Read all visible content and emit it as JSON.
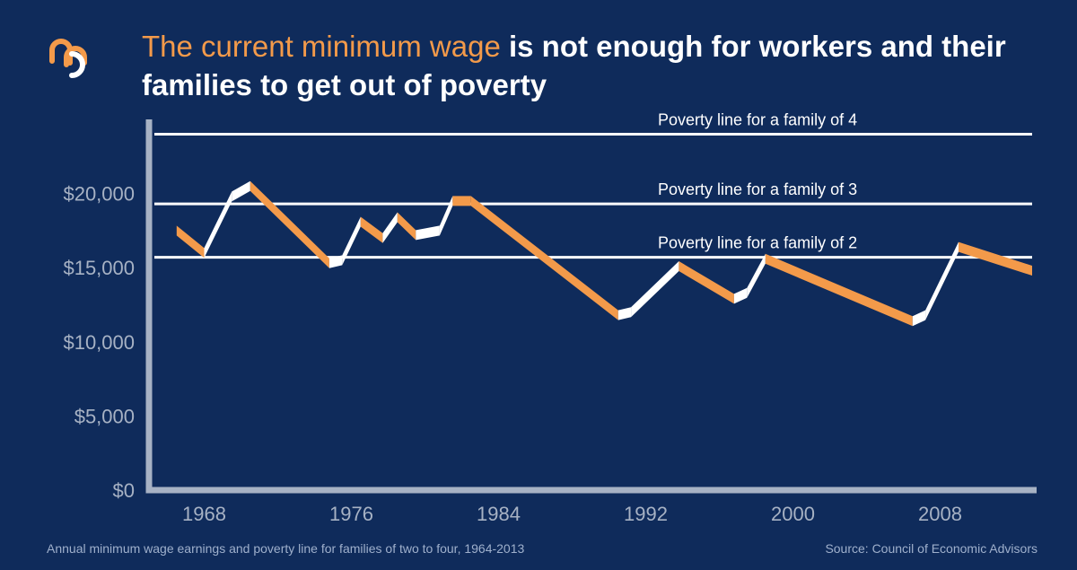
{
  "header": {
    "title_highlight": "The current minimum wage",
    "title_rest": " is not enough for workers and their families to get out of poverty"
  },
  "footer": {
    "caption": "Annual minimum wage earnings and poverty line for families of two to four, 1964-2013",
    "source": "Source: Council of Economic Advisors"
  },
  "colors": {
    "background": "#0f2b5b",
    "accent": "#f39a4a",
    "ribbon_up": "#ffffff",
    "line": "#ffffff",
    "axis": "#a7b2c4",
    "tick_label": "#a7b2c4"
  },
  "logo_icon": "brand-logo-icon",
  "chart_data": {
    "type": "line",
    "xlim": [
      1965,
      2013
    ],
    "ylim": [
      0,
      25000
    ],
    "yticks": [
      {
        "value": 0,
        "label": "$0"
      },
      {
        "value": 5000,
        "label": "$5,000"
      },
      {
        "value": 10000,
        "label": "$10,000"
      },
      {
        "value": 15000,
        "label": "$15,000"
      },
      {
        "value": 20000,
        "label": "$20,000"
      }
    ],
    "xticks": [
      {
        "value": 1968,
        "label": "1968"
      },
      {
        "value": 1976,
        "label": "1976"
      },
      {
        "value": 1984,
        "label": "1984"
      },
      {
        "value": 1992,
        "label": "1992"
      },
      {
        "value": 2000,
        "label": "2000"
      },
      {
        "value": 2008,
        "label": "2008"
      }
    ],
    "series": [
      {
        "x": [
          1966.5,
          1968,
          1969.5,
          1970.5,
          1974.8,
          1975.5,
          1976.5,
          1977.7,
          1978.5,
          1979.5,
          1980.8,
          1981.5,
          1982.5,
          1990.5,
          1991.2,
          1993.8,
          1996.8,
          1997.5,
          1998.5,
          2006.5,
          2007.2,
          2009,
          2013
        ],
        "y": [
          17500,
          16000,
          19800,
          20500,
          15300,
          15500,
          18100,
          17000,
          18400,
          17200,
          17500,
          19500,
          19500,
          11800,
          12000,
          15100,
          12900,
          13300,
          15600,
          11400,
          11800,
          16400,
          14800
        ]
      }
    ],
    "reference_lines": [
      {
        "label": "Poverty line for a family of 4",
        "value": 24000
      },
      {
        "label": "Poverty line for a family of 3",
        "value": 19300
      },
      {
        "label": "Poverty line for a family of 2",
        "value": 15700
      }
    ]
  }
}
